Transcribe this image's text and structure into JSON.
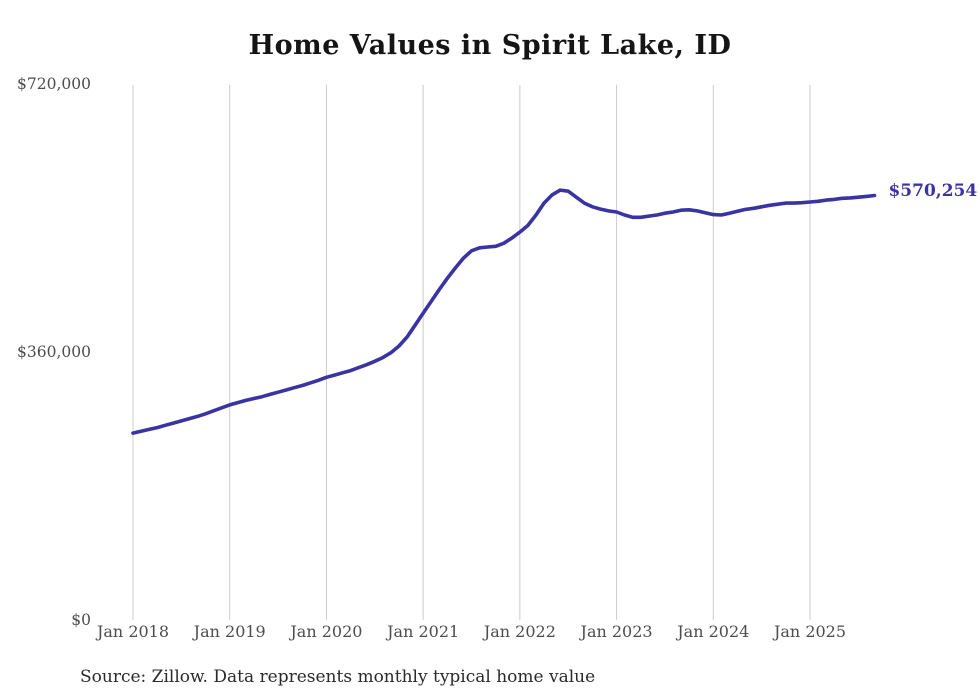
{
  "title": "Home Values in Spirit Lake, ID",
  "source": "Source: Zillow. Data represents monthly typical home value",
  "colors": {
    "line": "#3a34a3",
    "grid": "#cccccc",
    "title": "#151515",
    "tick": "#4d4d4d",
    "source": "#2a2a2a",
    "end_label": "#3a34a3"
  },
  "chart_data": {
    "type": "line",
    "title": "Home Values in Spirit Lake, ID",
    "frequency": "monthly",
    "x_start": "2018-01",
    "x_end": "2025-09",
    "ylim": [
      0,
      720000
    ],
    "grid": "vertical-only",
    "legend": "none",
    "x_ticks": [
      "Jan 2018",
      "Jan 2019",
      "Jan 2020",
      "Jan 2021",
      "Jan 2022",
      "Jan 2023",
      "Jan 2024",
      "Jan 2025"
    ],
    "y_ticks": [
      {
        "label": "$720,000",
        "value": 720000
      },
      {
        "label": "$360,000",
        "value": 360000
      },
      {
        "label": "$0",
        "value": 0
      }
    ],
    "end_value": 570254,
    "end_value_label": "$570,254",
    "series": [
      {
        "name": "Typical home value",
        "values": [
          251000,
          253500,
          256000,
          258500,
          261500,
          264500,
          267500,
          270500,
          273500,
          277000,
          281000,
          285000,
          289000,
          292000,
          295000,
          297500,
          300000,
          303000,
          306000,
          309000,
          312000,
          315000,
          318500,
          322000,
          326000,
          329000,
          332000,
          335000,
          339000,
          343000,
          347500,
          352500,
          359000,
          368000,
          380000,
          396000,
          412000,
          428000,
          444000,
          459000,
          473000,
          486000,
          496000,
          500000,
          501000,
          502000,
          506000,
          513000,
          521000,
          530000,
          544000,
          560000,
          571000,
          577500,
          576000,
          568000,
          560000,
          555000,
          552000,
          549500,
          548000,
          544000,
          541000,
          541000,
          542500,
          544000,
          546500,
          548000,
          550500,
          551000,
          549500,
          547000,
          544500,
          544000,
          546500,
          549000,
          551500,
          553000,
          555000,
          557000,
          558500,
          560000,
          560000,
          560500,
          561500,
          562500,
          564000,
          565000,
          566500,
          567000,
          568000,
          569000,
          570254
        ]
      }
    ]
  }
}
